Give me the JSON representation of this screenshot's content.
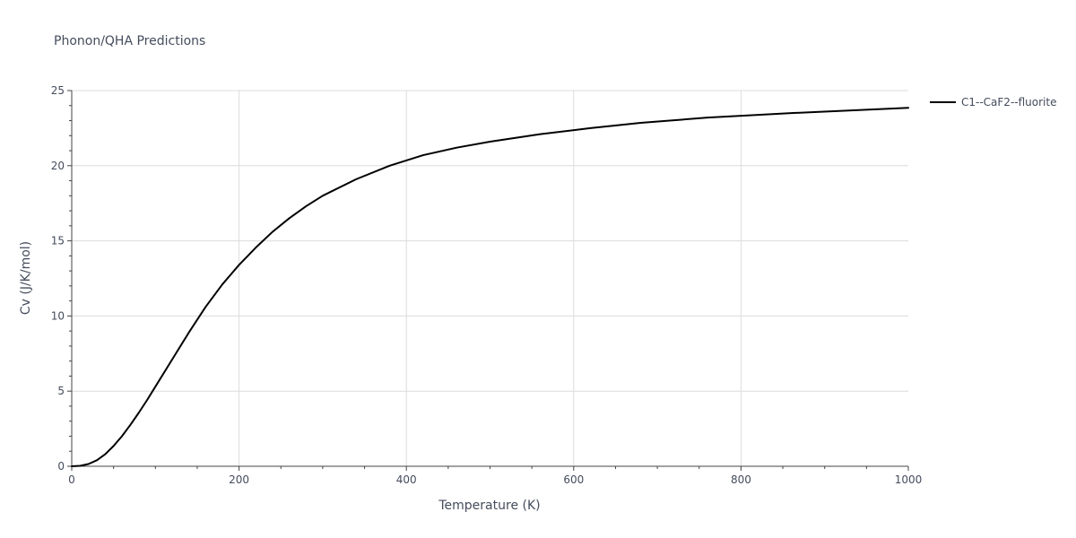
{
  "chart_data": {
    "type": "line",
    "title": "Phonon/QHA Predictions",
    "xlabel": "Temperature (K)",
    "ylabel": "Cv (J/K/mol)",
    "xlim": [
      0,
      1000
    ],
    "ylim": [
      0,
      25
    ],
    "xticks": [
      0,
      200,
      400,
      600,
      800,
      1000
    ],
    "yticks": [
      0,
      5,
      10,
      15,
      20,
      25
    ],
    "grid": true,
    "legend_position": "top-right",
    "series": [
      {
        "name": "C1--CaF2--fluorite",
        "color": "#000000",
        "x": [
          0,
          10,
          20,
          30,
          40,
          50,
          60,
          70,
          80,
          90,
          100,
          120,
          140,
          160,
          180,
          200,
          220,
          240,
          260,
          280,
          300,
          340,
          380,
          420,
          460,
          500,
          560,
          620,
          680,
          760,
          860,
          1000
        ],
        "y": [
          0,
          0.03,
          0.15,
          0.4,
          0.8,
          1.35,
          2.0,
          2.75,
          3.55,
          4.4,
          5.3,
          7.1,
          8.9,
          10.6,
          12.1,
          13.4,
          14.55,
          15.6,
          16.5,
          17.3,
          18.0,
          19.1,
          20.0,
          20.7,
          21.2,
          21.6,
          22.1,
          22.5,
          22.85,
          23.2,
          23.5,
          23.85
        ]
      }
    ]
  }
}
